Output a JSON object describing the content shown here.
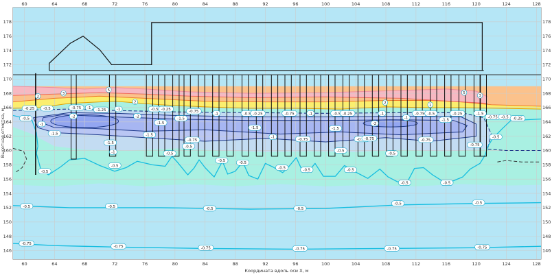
{
  "chart_data": {
    "type": "contour",
    "xlabel": "Координата вдоль оси X, м",
    "ylabel": "Высотная отметка, м",
    "xlim": [
      58.5,
      128.6
    ],
    "ylim": [
      144.8,
      180.0
    ],
    "x_ticks": [
      60,
      64,
      68,
      72,
      76,
      80,
      84,
      88,
      92,
      96,
      100,
      104,
      108,
      112,
      116,
      120,
      124,
      128
    ],
    "y_ticks": [
      146,
      148,
      150,
      152,
      154,
      156,
      158,
      160,
      162,
      164,
      166,
      168,
      170,
      172,
      174,
      176,
      178
    ],
    "grid": true,
    "colors": {
      "deep": "#b5e6f6",
      "mid": "#a9f0e2",
      "upper": "#c3dcf2",
      "depression": "#93a6f1",
      "yellow": "#fbee6e",
      "orange": "#fbc28c",
      "pink": "#f7b8c2",
      "contour": "#16bde0",
      "contour_dark": "#1e3a8a",
      "structure": "#111111"
    },
    "contour_labels": [
      {
        "x": 60.3,
        "y": 152.2,
        "text": "-0.5"
      },
      {
        "x": 71.6,
        "y": 152.2,
        "text": "-0.5"
      },
      {
        "x": 84.6,
        "y": 151.9,
        "text": "-0.5"
      },
      {
        "x": 96.6,
        "y": 151.9,
        "text": "-0.5"
      },
      {
        "x": 109.6,
        "y": 152.6,
        "text": "-0.5"
      },
      {
        "x": 120.3,
        "y": 152.7,
        "text": "-0.5"
      },
      {
        "x": 60.3,
        "y": 147.0,
        "text": "-0.75"
      },
      {
        "x": 72.5,
        "y": 146.6,
        "text": "-0.75"
      },
      {
        "x": 84.1,
        "y": 146.4,
        "text": "-0.75"
      },
      {
        "x": 96.6,
        "y": 146.3,
        "text": "-0.75"
      },
      {
        "x": 108.8,
        "y": 146.3,
        "text": "-0.75"
      },
      {
        "x": 120.8,
        "y": 146.5,
        "text": "-0.75"
      },
      {
        "x": 60.7,
        "y": 165.9,
        "text": "-0.25"
      },
      {
        "x": 63.0,
        "y": 165.9,
        "text": "-0.5"
      },
      {
        "x": 66.9,
        "y": 166.0,
        "text": "-0.75"
      },
      {
        "x": 68.6,
        "y": 166.0,
        "text": "-1"
      },
      {
        "x": 70.2,
        "y": 165.7,
        "text": "-1.25"
      },
      {
        "x": 72.5,
        "y": 165.8,
        "text": "-1"
      },
      {
        "x": 77.3,
        "y": 165.8,
        "text": "-0.5"
      },
      {
        "x": 78.8,
        "y": 165.8,
        "text": "-0.25"
      },
      {
        "x": 82.5,
        "y": 165.5,
        "text": "-0.75"
      },
      {
        "x": 85.5,
        "y": 165.2,
        "text": "-1"
      },
      {
        "x": 89.6,
        "y": 165.2,
        "text": "-0.5"
      },
      {
        "x": 91.0,
        "y": 165.2,
        "text": "-0.25"
      },
      {
        "x": 95.2,
        "y": 165.2,
        "text": "-0.75"
      },
      {
        "x": 98.0,
        "y": 165.2,
        "text": "-1"
      },
      {
        "x": 101.5,
        "y": 165.2,
        "text": "-0.5"
      },
      {
        "x": 102.9,
        "y": 165.2,
        "text": "-0.25"
      },
      {
        "x": 107.5,
        "y": 165.2,
        "text": "-1"
      },
      {
        "x": 112.5,
        "y": 165.2,
        "text": "-0.75"
      },
      {
        "x": 114.0,
        "y": 165.2,
        "text": "-0.5"
      },
      {
        "x": 117.5,
        "y": 165.2,
        "text": "-0.25"
      },
      {
        "x": 120.5,
        "y": 165.2,
        "text": "-1.5"
      },
      {
        "x": 122.2,
        "y": 164.7,
        "text": "-0.75"
      },
      {
        "x": 123.8,
        "y": 164.7,
        "text": "-0.5"
      },
      {
        "x": 125.5,
        "y": 164.5,
        "text": "-0.25"
      },
      {
        "x": 66.5,
        "y": 164.8,
        "text": "-2"
      },
      {
        "x": 75.0,
        "y": 164.8,
        "text": "-2"
      },
      {
        "x": 80.8,
        "y": 164.5,
        "text": "-1.5"
      },
      {
        "x": 106.5,
        "y": 163.8,
        "text": "-2"
      },
      {
        "x": 110.7,
        "y": 164.6,
        "text": "-1"
      },
      {
        "x": 115.9,
        "y": 164.3,
        "text": "-1.5"
      },
      {
        "x": 62.3,
        "y": 163.7,
        "text": "-1"
      },
      {
        "x": 64.0,
        "y": 162.4,
        "text": "-1.5"
      },
      {
        "x": 60.2,
        "y": 164.5,
        "text": "-0.5"
      },
      {
        "x": 76.6,
        "y": 162.2,
        "text": "-1.5"
      },
      {
        "x": 90.6,
        "y": 163.2,
        "text": "-1.5"
      },
      {
        "x": 101.3,
        "y": 163.1,
        "text": "-1.5"
      },
      {
        "x": 93.0,
        "y": 161.9,
        "text": "-1"
      },
      {
        "x": 78.1,
        "y": 163.9,
        "text": "-1.5"
      },
      {
        "x": 61.8,
        "y": 167.6,
        "text": "2"
      },
      {
        "x": 65.2,
        "y": 168.0,
        "text": "3"
      },
      {
        "x": 71.2,
        "y": 168.5,
        "text": "5"
      },
      {
        "x": 74.7,
        "y": 166.8,
        "text": "2"
      },
      {
        "x": 107.9,
        "y": 166.7,
        "text": "2"
      },
      {
        "x": 113.9,
        "y": 166.4,
        "text": "1"
      },
      {
        "x": 120.5,
        "y": 167.7,
        "text": "3"
      },
      {
        "x": 118.4,
        "y": 168.1,
        "text": "5"
      },
      {
        "x": 71.4,
        "y": 161.1,
        "text": "-1.5"
      },
      {
        "x": 71.8,
        "y": 159.8,
        "text": "-1"
      },
      {
        "x": 72.0,
        "y": 157.9,
        "text": "-0.5"
      },
      {
        "x": 82.3,
        "y": 161.5,
        "text": "-0.75"
      },
      {
        "x": 81.8,
        "y": 160.6,
        "text": "-0.5"
      },
      {
        "x": 97.0,
        "y": 161.6,
        "text": "-0.75"
      },
      {
        "x": 104.8,
        "y": 161.6,
        "text": "-0.75"
      },
      {
        "x": 105.8,
        "y": 161.7,
        "text": "-0.75"
      },
      {
        "x": 113.3,
        "y": 161.5,
        "text": "-0.75"
      },
      {
        "x": 119.8,
        "y": 160.8,
        "text": "-0.75"
      },
      {
        "x": 122.6,
        "y": 161.9,
        "text": "-0.5"
      },
      {
        "x": 79.3,
        "y": 159.6,
        "text": "-0.5"
      },
      {
        "x": 86.2,
        "y": 158.6,
        "text": "-0.5"
      },
      {
        "x": 89.0,
        "y": 158.3,
        "text": "-0.5"
      },
      {
        "x": 94.2,
        "y": 157.6,
        "text": "-0.5"
      },
      {
        "x": 97.5,
        "y": 157.3,
        "text": "-0.5"
      },
      {
        "x": 103.3,
        "y": 157.3,
        "text": "-0.5"
      },
      {
        "x": 110.5,
        "y": 155.5,
        "text": "-0.5"
      },
      {
        "x": 116.1,
        "y": 155.5,
        "text": "-0.5"
      },
      {
        "x": 108.8,
        "y": 159.6,
        "text": "-0.5"
      },
      {
        "x": 62.7,
        "y": 157.1,
        "text": "-0.5"
      },
      {
        "x": 102.0,
        "y": 160.0,
        "text": "-0.5"
      }
    ]
  }
}
